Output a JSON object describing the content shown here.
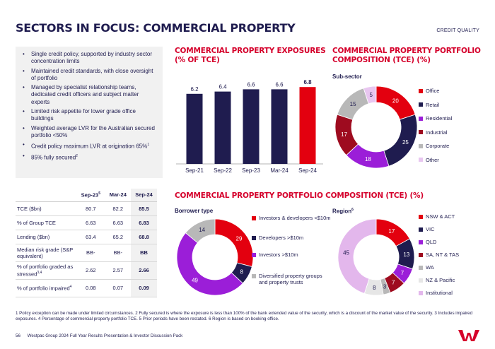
{
  "page": {
    "title": "SECTORS IN FOCUS: COMMERCIAL PROPERTY",
    "section_tag": "CREDIT QUALITY"
  },
  "bullets": [
    "Single credit policy, supported by industry sector concentration limits",
    "Maintained credit standards, with close oversight of portfolio",
    "Managed by specialist relationship teams, dedicated credit officers and subject matter experts",
    "Limited risk appetite for lower grade office buildings",
    "Weighted average LVR for the Australian secured portfolio <50%",
    "Credit policy maximum LVR at origination 65%",
    "85% fully secured"
  ],
  "bullet_sups": [
    "",
    "",
    "",
    "",
    "",
    "1",
    "2"
  ],
  "table": {
    "headers": [
      "",
      "Sep-23",
      "Mar-24",
      "Sep-24"
    ],
    "header_sup": "5",
    "rows": [
      {
        "label": "TCE ($bn)",
        "sup": "",
        "values": [
          "80.7",
          "82.2",
          "85.5"
        ]
      },
      {
        "label": "% of Group TCE",
        "sup": "",
        "values": [
          "6.63",
          "6.63",
          "6.83"
        ]
      },
      {
        "label": "Lending ($bn)",
        "sup": "",
        "values": [
          "63.4",
          "65.2",
          "68.8"
        ]
      },
      {
        "label": "Median risk grade (S&P equivalent)",
        "sup": "",
        "values": [
          "BB-",
          "BB-",
          "BB"
        ]
      },
      {
        "label": "% of portfolio graded as stressed",
        "sup": "3,4",
        "values": [
          "2.62",
          "2.57",
          "2.66"
        ]
      },
      {
        "label": "% of portfolio impaired",
        "sup": "4",
        "values": [
          "0.08",
          "0.07",
          "0.09"
        ]
      }
    ]
  },
  "exposures": {
    "title_line1": "COMMERCIAL PROPERTY EXPOSURES",
    "title_line2": "(% OF TCE)"
  },
  "composition": {
    "title_line1": "COMMERCIAL PROPERTY PORTFOLIO",
    "title_line2": "COMPOSITION (TCE) (%)",
    "subtitle": "Sub-sector"
  },
  "lower": {
    "title": "COMMERCIAL PROPERTY PORTFOLIO COMPOSITION (TCE) (%)",
    "borrower_label": "Borrower type",
    "region_label": "Region",
    "region_sup": "6"
  },
  "chart_data": [
    {
      "type": "bar",
      "title": "COMMERCIAL PROPERTY EXPOSURES (% OF TCE)",
      "categories": [
        "Sep-21",
        "Sep-22",
        "Sep-23",
        "Mar-24",
        "Sep-24"
      ],
      "values": [
        6.2,
        6.4,
        6.6,
        6.6,
        6.8
      ],
      "labels": [
        "6.2",
        "6.4",
        "6.6",
        "6.6",
        "6.8"
      ],
      "colors": [
        "#1f1c4f",
        "#1f1c4f",
        "#1f1c4f",
        "#1f1c4f",
        "#e3000f"
      ],
      "ylim": [
        0,
        7.5
      ]
    },
    {
      "type": "pie",
      "title": "Sub-sector",
      "labels": [
        "Office",
        "Retail",
        "Residential",
        "Industrial",
        "Corporate",
        "Other"
      ],
      "values": [
        20,
        25,
        18,
        17,
        15,
        5
      ],
      "colors": [
        "#e3000f",
        "#1f1c4f",
        "#9b1ed8",
        "#9e0b1f",
        "#b8b8b8",
        "#e8c6f0"
      ]
    },
    {
      "type": "pie",
      "title": "Borrower type",
      "labels": [
        "Investors & developers <$10m",
        "Developers >$10m",
        "Investors >$10m",
        "Diversified property groups and property trusts"
      ],
      "values": [
        29,
        8,
        49,
        14
      ],
      "colors": [
        "#e3000f",
        "#1f1c4f",
        "#9b1ed8",
        "#b8b8b8"
      ]
    },
    {
      "type": "pie",
      "title": "Region",
      "labels": [
        "NSW & ACT",
        "VIC",
        "QLD",
        "SA, NT & TAS",
        "WA",
        "NZ & Pacific",
        "Institutional"
      ],
      "values": [
        17,
        13,
        7,
        7,
        3,
        8,
        45
      ],
      "colors": [
        "#e3000f",
        "#1f1c4f",
        "#9b1ed8",
        "#9e0b1f",
        "#b8b8b8",
        "#e6e6e6",
        "#e3b7ec"
      ]
    }
  ],
  "footnote": "1 Policy exception can be made under limited circumstances. 2 Fully secured is where the exposure is less than 100% of the bank extended value of the security, which is a discount of the market value of the security. 3 Includes impaired exposures. 4 Percentage of commercial property portfolio TCE. 5 Prior periods have been restated. 6 Region is based on booking office.",
  "footer": {
    "page_number": "56",
    "text": "Westpac Group 2024 Full Year Results Presentation & Investor Discussion Pack"
  },
  "icons": {
    "logo": "westpac-w-logo"
  }
}
